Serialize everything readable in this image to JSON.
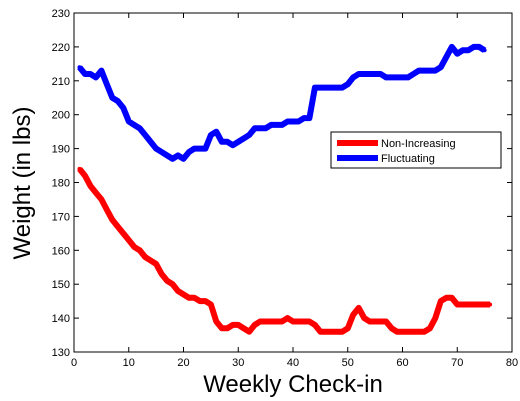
{
  "chart_data": {
    "type": "line",
    "title": "",
    "xlabel": "Weekly Check-in",
    "ylabel": "Weight (in lbs)",
    "xlim": [
      0,
      80
    ],
    "ylim": [
      130,
      230
    ],
    "xticks": [
      0,
      10,
      20,
      30,
      40,
      50,
      60,
      70,
      80
    ],
    "yticks": [
      130,
      140,
      150,
      160,
      170,
      180,
      190,
      200,
      210,
      220,
      230
    ],
    "grid": false,
    "legend_position": "center-right",
    "series": [
      {
        "name": "Non-Increasing",
        "color": "#ff0000",
        "x": [
          1,
          2,
          3,
          4,
          5,
          6,
          7,
          8,
          9,
          10,
          11,
          12,
          13,
          14,
          15,
          16,
          17,
          18,
          19,
          20,
          21,
          22,
          23,
          24,
          25,
          26,
          27,
          28,
          29,
          30,
          31,
          32,
          33,
          34,
          35,
          36,
          37,
          38,
          39,
          40,
          41,
          42,
          43,
          44,
          45,
          46,
          47,
          48,
          49,
          50,
          51,
          52,
          53,
          54,
          55,
          56,
          57,
          58,
          59,
          60,
          61,
          62,
          63,
          64,
          65,
          66,
          67,
          68,
          69,
          70,
          71,
          72,
          73,
          74,
          75,
          76
        ],
        "y": [
          184,
          182,
          179,
          177,
          175,
          172,
          169,
          167,
          165,
          163,
          161,
          160,
          158,
          157,
          156,
          153,
          151,
          150,
          148,
          147,
          146,
          146,
          145,
          145,
          144,
          139,
          137,
          137,
          138,
          138,
          137,
          136,
          138,
          139,
          139,
          139,
          139,
          139,
          140,
          139,
          139,
          139,
          139,
          138,
          136,
          136,
          136,
          136,
          136,
          137,
          141,
          143,
          140,
          139,
          139,
          139,
          139,
          137,
          136,
          136,
          136,
          136,
          136,
          136,
          137,
          140,
          145,
          146,
          146,
          144,
          144,
          144,
          144,
          144,
          144,
          144
        ]
      },
      {
        "name": "Fluctuating",
        "color": "#0000ff",
        "x": [
          1,
          2,
          3,
          4,
          5,
          6,
          7,
          8,
          9,
          10,
          11,
          12,
          13,
          14,
          15,
          16,
          17,
          18,
          19,
          20,
          21,
          22,
          23,
          24,
          25,
          26,
          27,
          28,
          29,
          30,
          31,
          32,
          33,
          34,
          35,
          36,
          37,
          38,
          39,
          40,
          41,
          42,
          43,
          44,
          45,
          46,
          47,
          48,
          49,
          50,
          51,
          52,
          53,
          54,
          55,
          56,
          57,
          58,
          59,
          60,
          61,
          62,
          63,
          64,
          65,
          66,
          67,
          68,
          69,
          70,
          71,
          72,
          73,
          74,
          75
        ],
        "y": [
          214,
          212,
          212,
          211,
          213,
          209,
          205,
          204,
          202,
          198,
          197,
          196,
          194,
          192,
          190,
          189,
          188,
          187,
          188,
          187,
          189,
          190,
          190,
          190,
          194,
          195,
          192,
          192,
          191,
          192,
          193,
          194,
          196,
          196,
          196,
          197,
          197,
          197,
          198,
          198,
          198,
          199,
          199,
          208,
          208,
          208,
          208,
          208,
          208,
          209,
          211,
          212,
          212,
          212,
          212,
          212,
          211,
          211,
          211,
          211,
          211,
          212,
          213,
          213,
          213,
          213,
          214,
          217,
          220,
          218,
          219,
          219,
          220,
          220,
          219
        ]
      }
    ]
  }
}
